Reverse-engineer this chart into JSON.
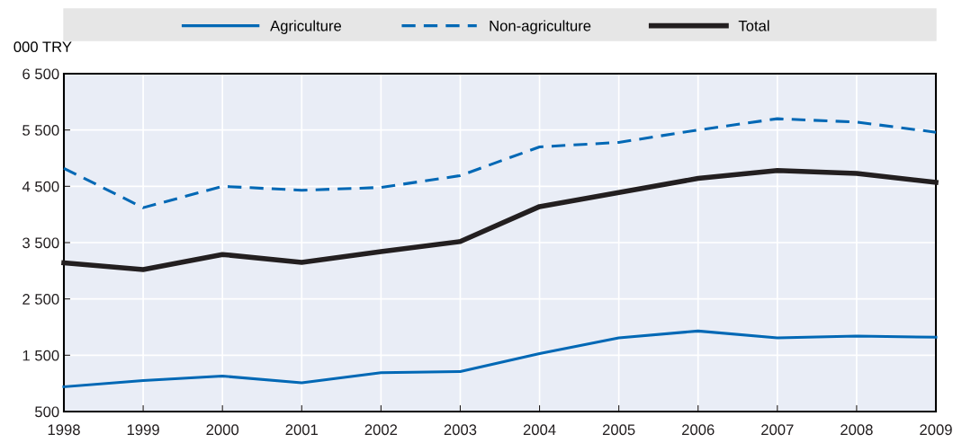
{
  "chart_data": {
    "type": "line",
    "ylabel": "000 TRY",
    "x": [
      1998,
      1999,
      2000,
      2001,
      2002,
      2003,
      2004,
      2005,
      2006,
      2007,
      2008,
      2009
    ],
    "series": [
      {
        "name": "Agriculture",
        "color": "#0068b5",
        "line_style": "solid",
        "values": [
          940,
          1050,
          1130,
          1010,
          1190,
          1210,
          1530,
          1810,
          1930,
          1810,
          1840,
          1820
        ]
      },
      {
        "name": "Non-agriculture",
        "color": "#0068b5",
        "line_style": "dashed",
        "values": [
          4820,
          4120,
          4500,
          4430,
          4480,
          4690,
          5200,
          5280,
          5500,
          5700,
          5640,
          5460
        ]
      },
      {
        "name": "Total",
        "color": "#231f20",
        "line_style": "solid",
        "values": [
          3140,
          3020,
          3290,
          3150,
          3340,
          3520,
          4140,
          4390,
          4640,
          4780,
          4730,
          4570
        ]
      }
    ],
    "xlim": [
      1998,
      2009
    ],
    "xticks": [
      1998,
      1999,
      2000,
      2001,
      2002,
      2003,
      2004,
      2005,
      2006,
      2007,
      2008,
      2009
    ],
    "ylim": [
      500,
      6500
    ],
    "yticks": [
      {
        "value": 500,
        "label": "500"
      },
      {
        "value": 1500,
        "label": "1 500"
      },
      {
        "value": 2500,
        "label": "2 500"
      },
      {
        "value": 3500,
        "label": "3 500"
      },
      {
        "value": 4500,
        "label": "4 500"
      },
      {
        "value": 5500,
        "label": "5 500"
      },
      {
        "value": 6500,
        "label": "6 500"
      }
    ],
    "grid": true,
    "legend": "top",
    "marker": "none"
  }
}
